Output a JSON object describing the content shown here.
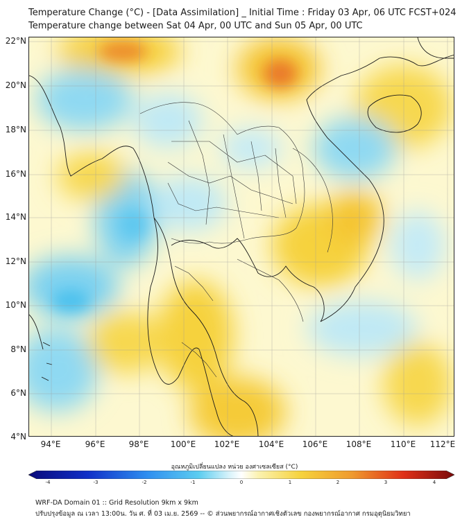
{
  "title_line1": "Temperature Change (°C) - [Data Assimilation] _ Initial Time : Friday 03 Apr, 06 UTC FCST+024",
  "title_line2": "Temperature change between Sat 04 Apr, 00 UTC and Sun 05 Apr, 00 UTC",
  "lat_labels": [
    "22°N",
    "20°N",
    "18°N",
    "16°N",
    "14°N",
    "12°N",
    "10°N",
    "8°N",
    "6°N",
    "4°N"
  ],
  "lon_labels": [
    "94°E",
    "96°E",
    "98°E",
    "100°E",
    "102°E",
    "104°E",
    "106°E",
    "108°E",
    "110°E",
    "112°E"
  ],
  "colorbar": {
    "title": "อุณหภูมิเปลี่ยนแปลง หน่วย องศาเซลเซียส (°C)",
    "ticks": [
      "-4",
      "-3",
      "-2",
      "-1",
      "0",
      "1",
      "2",
      "3",
      "4"
    ],
    "range": [
      -4,
      4
    ]
  },
  "footer_line1": "WRF-DA Domain 01 :: Grid Resolution 9km x 9km",
  "footer_line2": "ปรับปรุงข้อมูล ณ เวลา 13:00น. วัน ศ. ที่ 03 เม.ย. 2569 -- © ส่วนพยากรณ์อากาศเชิงตัวเลข กองพยากรณ์อากาศ กรมอุตุนิยมวิทยา",
  "colors": {
    "warm": "#f5d33a",
    "hot": "#e8602a",
    "cool": "#52c3ee",
    "neutral": "#fdf8d0"
  }
}
